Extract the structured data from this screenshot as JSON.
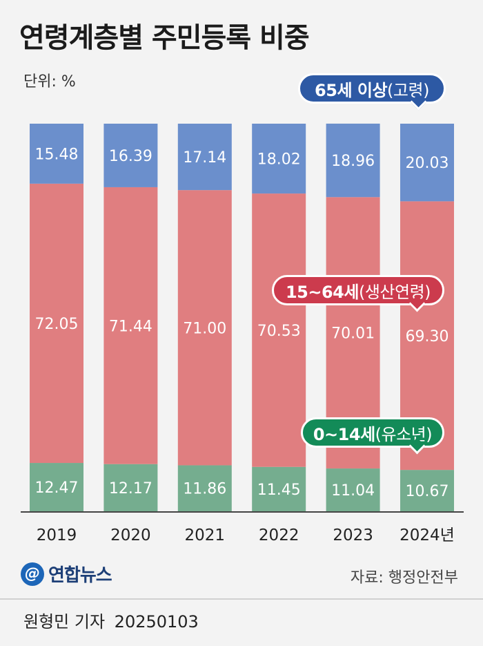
{
  "title": "연령계층별 주민등록 비중",
  "unit_label": "단위: %",
  "chart_data": {
    "type": "bar",
    "stacked": true,
    "categories": [
      "2019",
      "2020",
      "2021",
      "2022",
      "2023",
      "2024년"
    ],
    "ylim": [
      0,
      100
    ],
    "series": [
      {
        "name": "0~14세(유소년)",
        "color": "#75ad8f",
        "values": [
          12.47,
          12.17,
          11.86,
          11.45,
          11.04,
          10.67
        ]
      },
      {
        "name": "15~64세(생산연령)",
        "color": "#e07e80",
        "values": [
          72.05,
          71.44,
          71.0,
          70.53,
          70.01,
          69.3
        ]
      },
      {
        "name": "65세 이상(고령)",
        "color": "#6b8fcc",
        "values": [
          15.48,
          16.39,
          17.14,
          18.02,
          18.96,
          20.03
        ]
      }
    ],
    "value_labels": [
      [
        "12.47",
        "12.17",
        "11.86",
        "11.45",
        "11.04",
        "10.67"
      ],
      [
        "72.05",
        "71.44",
        "71.00",
        "70.53",
        "70.01",
        "69.30"
      ],
      [
        "15.48",
        "16.39",
        "17.14",
        "18.02",
        "18.96",
        "20.03"
      ]
    ]
  },
  "callouts": {
    "elderly": {
      "main": "65세 이상",
      "sub": "(고령)",
      "color": "#2d59a4"
    },
    "working": {
      "main": "15~64세",
      "sub": "(생산연령)",
      "color": "#cc3b4d"
    },
    "youth": {
      "main": "0~14세",
      "sub": "(유소년)",
      "color": "#138b58"
    }
  },
  "logo_text": "연합뉴스",
  "source": "자료: 행정안전부",
  "byline": {
    "author": "원형민 기자",
    "date": "20250103"
  }
}
